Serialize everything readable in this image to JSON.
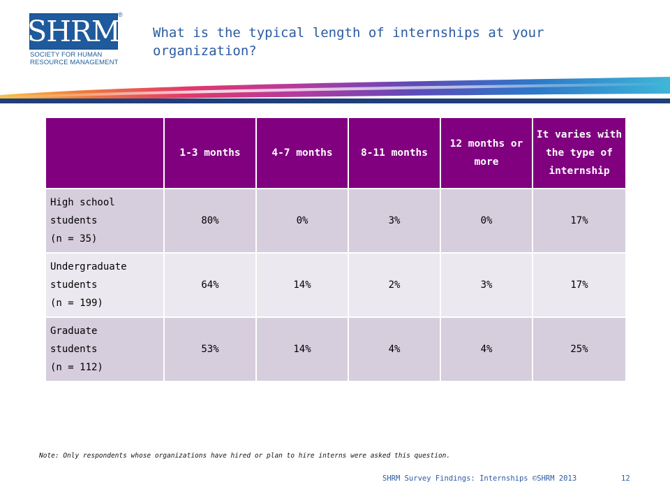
{
  "logo": {
    "letters": "SHRM",
    "reg": "®",
    "subtitle_line1": "SOCIETY FOR HUMAN",
    "subtitle_line2": "RESOURCE MANAGEMENT"
  },
  "title": "What is the typical length of internships at your organization?",
  "table": {
    "headers": [
      "",
      "1-3 months",
      "4-7 months",
      "8-11 months",
      "12 months or more",
      "It varies with the type of internship"
    ],
    "rows": [
      {
        "label_line1": "High school",
        "label_line2": "students",
        "label_line3": "(n = 35)",
        "cells": [
          "80%",
          "0%",
          "3%",
          "0%",
          "17%"
        ]
      },
      {
        "label_line1": "Undergraduate",
        "label_line2": "students",
        "label_line3": "(n = 199)",
        "cells": [
          "64%",
          "14%",
          "2%",
          "3%",
          "17%"
        ]
      },
      {
        "label_line1": "Graduate",
        "label_line2": "students",
        "label_line3": "(n = 112)",
        "cells": [
          "53%",
          "14%",
          "4%",
          "4%",
          "25%"
        ]
      }
    ]
  },
  "note": "Note: Only respondents whose organizations have hired or plan to hire interns were asked this question.",
  "footer": "SHRM Survey Findings: Internships ©SHRM 2013",
  "page_number": "12",
  "colors": {
    "header_purple": "#800080",
    "row_dark": "#d6cddd",
    "row_light": "#ece8ef",
    "title_blue": "#2b5aa3",
    "logo_blue": "#1e5a9c"
  }
}
